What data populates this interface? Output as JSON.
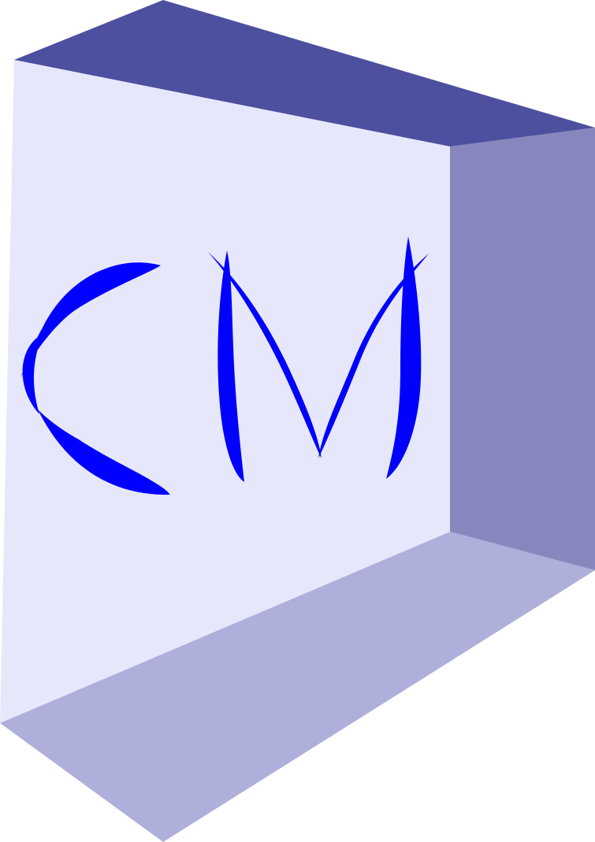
{
  "logo": {
    "lettering": "CM",
    "colors": {
      "top_face": "#4d4f9f",
      "right_face": "#8787bd",
      "bottom_face": "#afafdc",
      "front_face": "#e7e7fb",
      "letters": "#0000ff"
    }
  }
}
